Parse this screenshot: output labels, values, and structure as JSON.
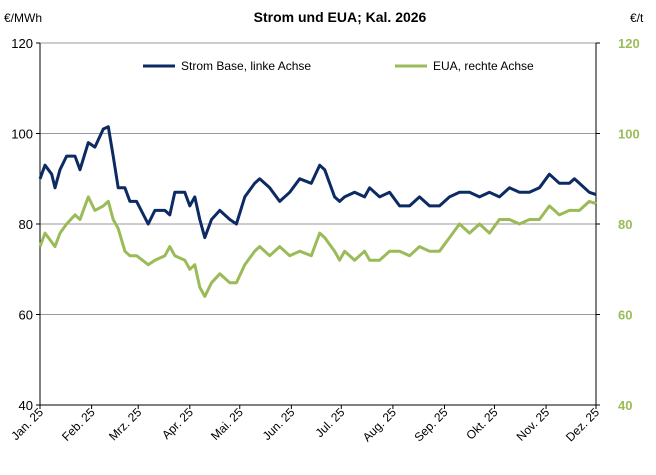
{
  "chart_data": {
    "type": "line",
    "title": "Strom und EUA; Kal. 2026",
    "ylabel_left": "€/MWh",
    "ylabel_right": "€/t",
    "ylim_left": [
      40,
      120
    ],
    "ylim_right": [
      40,
      120
    ],
    "yticks": [
      40,
      60,
      80,
      100,
      120
    ],
    "xlim": [
      "2025-01-01",
      "2025-12-01"
    ],
    "xticks": [
      "2025-01-01",
      "2025-02-01",
      "2025-03-01",
      "2025-04-01",
      "2025-05-01",
      "2025-06-01",
      "2025-07-01",
      "2025-08-01",
      "2025-09-01",
      "2025-10-01",
      "2025-11-01",
      "2025-12-01"
    ],
    "xtick_labels": [
      "Jan. 25",
      "Feb. 25",
      "Mrz. 25",
      "Apr. 25",
      "Mai. 25",
      "Jun. 25",
      "Jul. 25",
      "Aug. 25",
      "Sep. 25",
      "Okt. 25",
      "Nov. 25",
      "Dez. 25"
    ],
    "grid": "horizontal",
    "legend_placement": "top",
    "x": [
      "2025-01-01",
      "2025-01-04",
      "2025-01-08",
      "2025-01-10",
      "2025-01-13",
      "2025-01-17",
      "2025-01-22",
      "2025-01-25",
      "2025-01-30",
      "2025-02-03",
      "2025-02-08",
      "2025-02-11",
      "2025-02-14",
      "2025-02-17",
      "2025-02-21",
      "2025-02-24",
      "2025-02-28",
      "2025-03-07",
      "2025-03-11",
      "2025-03-17",
      "2025-03-20",
      "2025-03-23",
      "2025-03-29",
      "2025-04-01",
      "2025-04-04",
      "2025-04-07",
      "2025-04-10",
      "2025-04-14",
      "2025-04-19",
      "2025-04-25",
      "2025-04-29",
      "2025-05-04",
      "2025-05-10",
      "2025-05-13",
      "2025-05-19",
      "2025-05-25",
      "2025-05-31",
      "2025-06-06",
      "2025-06-13",
      "2025-06-18",
      "2025-06-21",
      "2025-06-27",
      "2025-06-30",
      "2025-07-03",
      "2025-07-09",
      "2025-07-15",
      "2025-07-18",
      "2025-07-24",
      "2025-07-30",
      "2025-08-05",
      "2025-08-11",
      "2025-08-17",
      "2025-08-23",
      "2025-08-29",
      "2025-09-04",
      "2025-09-10",
      "2025-09-16",
      "2025-09-22",
      "2025-09-28",
      "2025-10-04",
      "2025-10-10",
      "2025-10-16",
      "2025-10-22",
      "2025-10-28",
      "2025-11-03",
      "2025-11-09",
      "2025-11-15",
      "2025-11-18",
      "2025-11-21",
      "2025-11-27",
      "2025-12-01"
    ],
    "series": [
      {
        "name": "Strom Base, linke Achse",
        "axis": "left",
        "color": "#0c2a63",
        "values": [
          90,
          93,
          91,
          88,
          92,
          95,
          95,
          92,
          98,
          97,
          101,
          101.5,
          95,
          88,
          88,
          85,
          85,
          80,
          83,
          83,
          82,
          87,
          87,
          84,
          86,
          81,
          77,
          81,
          83,
          81,
          80,
          86,
          89,
          90,
          88,
          85,
          87,
          90,
          89,
          93,
          92,
          86,
          85,
          86,
          87,
          86,
          88,
          86,
          87,
          84,
          84,
          86,
          84,
          84,
          86,
          87,
          87,
          86,
          87,
          86,
          88,
          87,
          87,
          88,
          91,
          89,
          89,
          90,
          89,
          87,
          86.5
        ]
      },
      {
        "name": "EUA, rechte Achse",
        "axis": "right",
        "color": "#9bbb59",
        "values": [
          75,
          78,
          76,
          75,
          78,
          80,
          82,
          81,
          86,
          83,
          84,
          85,
          81,
          79,
          74,
          73,
          73,
          71,
          72,
          73,
          75,
          73,
          72,
          70,
          71,
          66,
          64,
          67,
          69,
          67,
          67,
          71,
          74,
          75,
          73,
          75,
          73,
          74,
          73,
          78,
          77,
          74,
          72,
          74,
          72,
          74,
          72,
          72,
          74,
          74,
          73,
          75,
          74,
          74,
          77,
          80,
          78,
          80,
          78,
          81,
          81,
          80,
          81,
          81,
          84,
          82,
          83,
          83,
          83,
          85,
          84.5
        ]
      }
    ]
  }
}
